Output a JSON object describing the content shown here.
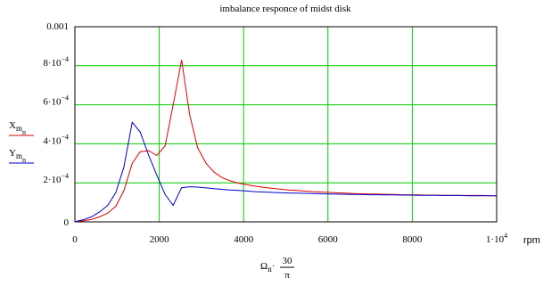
{
  "chart_data": {
    "type": "line",
    "title": "imbalance responce of midst disk",
    "x_unit": "rpm",
    "xlim": [
      0,
      10000
    ],
    "ylim": [
      0,
      0.001
    ],
    "grid": true,
    "x_ticks": [
      {
        "value": 0,
        "label": "0"
      },
      {
        "value": 2000,
        "label": "2000"
      },
      {
        "value": 4000,
        "label": "4000"
      },
      {
        "value": 6000,
        "label": "6000"
      },
      {
        "value": 8000,
        "label": "8000"
      },
      {
        "value": 10000,
        "label": "1·10",
        "exp": "4"
      }
    ],
    "y_ticks": [
      {
        "value": 0,
        "label": "0"
      },
      {
        "value": 0.0002,
        "label": "2·10",
        "exp": "−4"
      },
      {
        "value": 0.0004,
        "label": "4·10",
        "exp": "−4"
      },
      {
        "value": 0.0006,
        "label": "6·10",
        "exp": "−4"
      },
      {
        "value": 0.0008,
        "label": "8·10",
        "exp": "−4"
      },
      {
        "value": 0.001,
        "label": "0.001"
      }
    ],
    "xlabel": {
      "omega": "Ω",
      "sub": "n",
      "dot": "·",
      "num": "30",
      "den": "π"
    },
    "series": [
      {
        "name": "X",
        "sub1": "m",
        "sub2": "n",
        "color": "#dd0000",
        "x": [
          0,
          190,
          390,
          580,
          780,
          970,
          1160,
          1360,
          1550,
          1750,
          1940,
          2140,
          2330,
          2530,
          2720,
          2910,
          3110,
          3300,
          3500,
          3690,
          3880,
          4080,
          4270,
          4470,
          4660,
          4850,
          5050,
          5240,
          5440,
          5630,
          5820,
          6020,
          6210,
          6410,
          6600,
          6790,
          6990,
          7180,
          7380,
          7570,
          7770,
          7960,
          8150,
          8350,
          8540,
          8740,
          8930,
          9120,
          9320,
          9510,
          9710,
          9900,
          10000
        ],
        "y": [
          1e-06,
          5e-06,
          1.2e-05,
          2.5e-05,
          4.5e-05,
          8e-05,
          0.00016,
          0.0003,
          0.00036,
          0.000365,
          0.00034,
          0.00039,
          0.0006,
          0.00083,
          0.00055,
          0.00038,
          0.0003,
          0.000255,
          0.000225,
          0.00021,
          0.000198,
          0.00019,
          0.000183,
          0.000177,
          0.000172,
          0.000168,
          0.000164,
          0.000161,
          0.000158,
          0.000155,
          0.000153,
          0.000151,
          0.000149,
          0.000147,
          0.000145,
          0.000144,
          0.000143,
          0.000142,
          0.000141,
          0.00014,
          0.000139,
          0.000139,
          0.000138,
          0.000137,
          0.000137,
          0.000136,
          0.000136,
          0.000135,
          0.000135,
          0.000135,
          0.000135,
          0.000134,
          0.000134
        ]
      },
      {
        "name": "Y",
        "sub1": "m",
        "sub2": "n",
        "color": "#0000cc",
        "x": [
          0,
          190,
          390,
          580,
          780,
          970,
          1160,
          1360,
          1550,
          1750,
          1940,
          2140,
          2330,
          2530,
          2720,
          2910,
          3110,
          3300,
          3500,
          3690,
          3880,
          4080,
          4270,
          4470,
          4660,
          4850,
          5050,
          5240,
          5440,
          5630,
          5820,
          6020,
          6210,
          6410,
          6600,
          6790,
          6990,
          7180,
          7380,
          7570,
          7770,
          7960,
          8150,
          8350,
          8540,
          8740,
          8930,
          9120,
          9320,
          9510,
          9710,
          9900,
          10000
        ],
        "y": [
          1e-06,
          1e-05,
          2.5e-05,
          5e-05,
          8.5e-05,
          0.00015,
          0.00028,
          0.00051,
          0.00046,
          0.00034,
          0.00024,
          0.00014,
          8.5e-05,
          0.000175,
          0.00018,
          0.000178,
          0.000174,
          0.00017,
          0.000166,
          0.000163,
          0.000161,
          0.000158,
          0.000155,
          0.000153,
          0.000151,
          0.00015,
          0.000148,
          0.000147,
          0.000146,
          0.000145,
          0.000144,
          0.000143,
          0.000142,
          0.000141,
          0.00014,
          0.00014,
          0.000139,
          0.000139,
          0.000138,
          0.000138,
          0.000137,
          0.000137,
          0.000136,
          0.000136,
          0.000136,
          0.000135,
          0.000135,
          0.000135,
          0.000134,
          0.000134,
          0.000134,
          0.000134,
          0.000134
        ]
      }
    ]
  }
}
